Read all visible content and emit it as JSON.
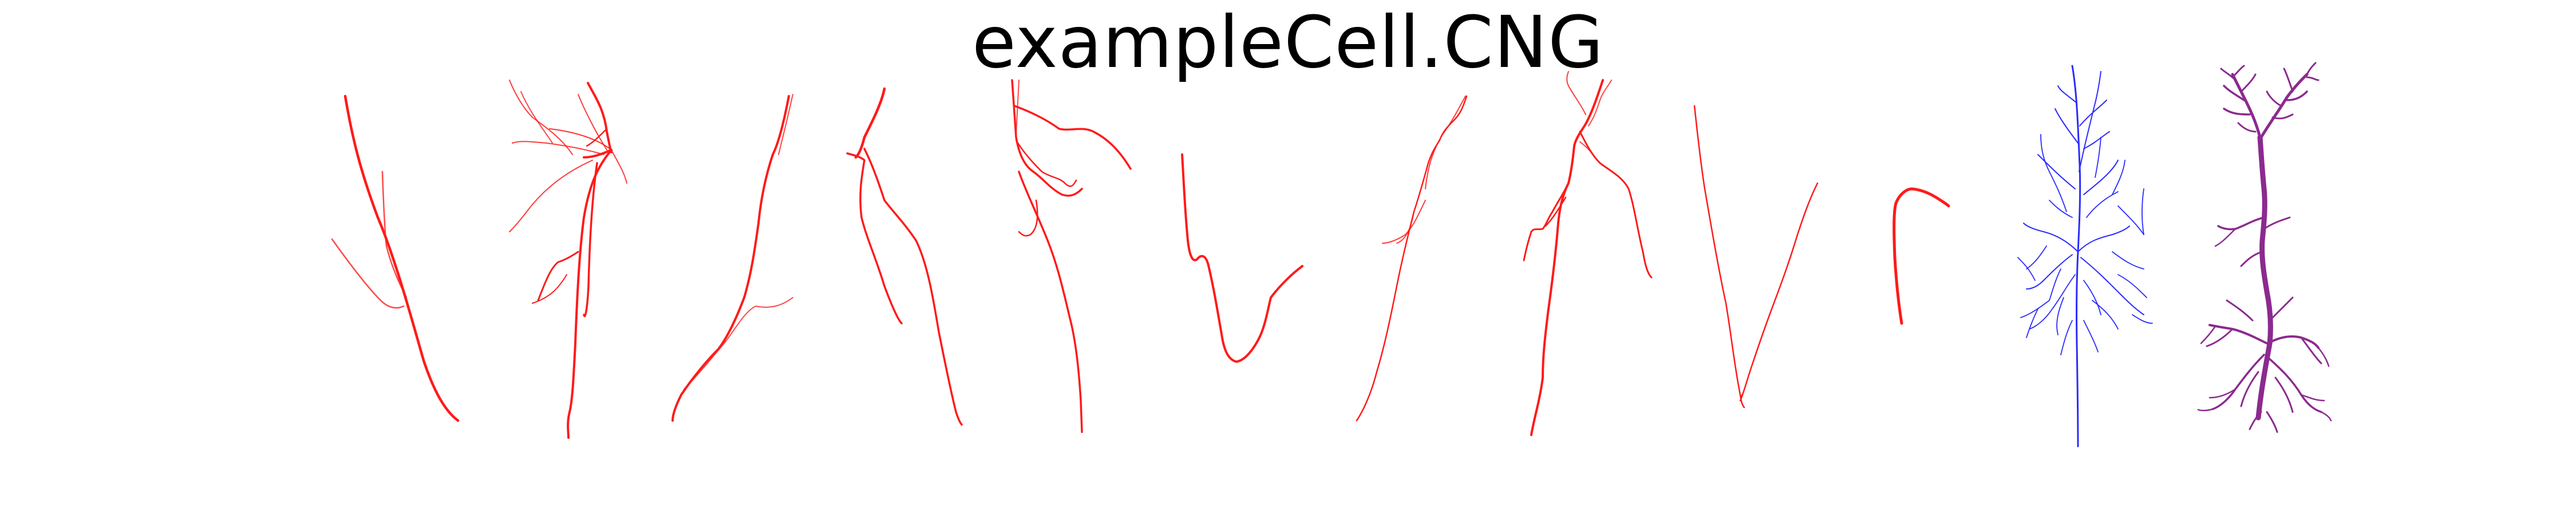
{
  "title": "exampleCell.CNG",
  "colors": {
    "background": "#ffffff",
    "title": "#000000",
    "fragment_red": "#ff1a1a",
    "full_blue": "#2b2bff",
    "full_purple": "#8b2a8f"
  },
  "panels": [
    {
      "name": "fragment-1",
      "color": "red"
    },
    {
      "name": "fragment-2",
      "color": "red"
    },
    {
      "name": "fragment-3",
      "color": "red"
    },
    {
      "name": "fragment-4",
      "color": "red"
    },
    {
      "name": "fragment-5",
      "color": "red"
    },
    {
      "name": "fragment-6",
      "color": "red"
    },
    {
      "name": "fragment-7",
      "color": "red"
    },
    {
      "name": "fragment-8",
      "color": "red"
    },
    {
      "name": "fragment-9",
      "color": "red"
    },
    {
      "name": "fragment-10",
      "color": "red"
    },
    {
      "name": "full-neuron-blue",
      "color": "blue"
    },
    {
      "name": "full-neuron-purple",
      "color": "purple"
    }
  ]
}
